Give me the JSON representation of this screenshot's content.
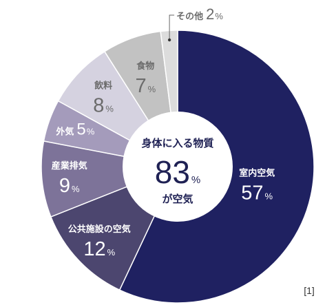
{
  "chart_data": {
    "type": "pie",
    "center": {
      "title": "身体に入る物質",
      "value": "83",
      "unit": "%",
      "subtitle": "が空気"
    },
    "slices": [
      {
        "label": "室内空気",
        "value": 57,
        "unit": "%",
        "color": "#1f2161",
        "text_color": "#ffffff"
      },
      {
        "label": "公共施設の空気",
        "value": 12,
        "unit": "%",
        "color": "#4c466f",
        "text_color": "#ffffff"
      },
      {
        "label": "産業排気",
        "value": 9,
        "unit": "%",
        "color": "#7d7399",
        "text_color": "#ffffff"
      },
      {
        "label": "外気",
        "value": 5,
        "unit": "%",
        "color": "#a49bbb",
        "text_color": "#ffffff"
      },
      {
        "label": "飲料",
        "value": 8,
        "unit": "%",
        "color": "#d5d2e0",
        "text_color": "#6b6b6b"
      },
      {
        "label": "食物",
        "value": 7,
        "unit": "%",
        "color": "#c2c2c2",
        "text_color": "#6b6b6b"
      },
      {
        "label": "その他",
        "value": 2,
        "unit": "%",
        "color": "#dcdcdc",
        "text_color": "#6b6b6b"
      }
    ],
    "reference": "[1]"
  }
}
